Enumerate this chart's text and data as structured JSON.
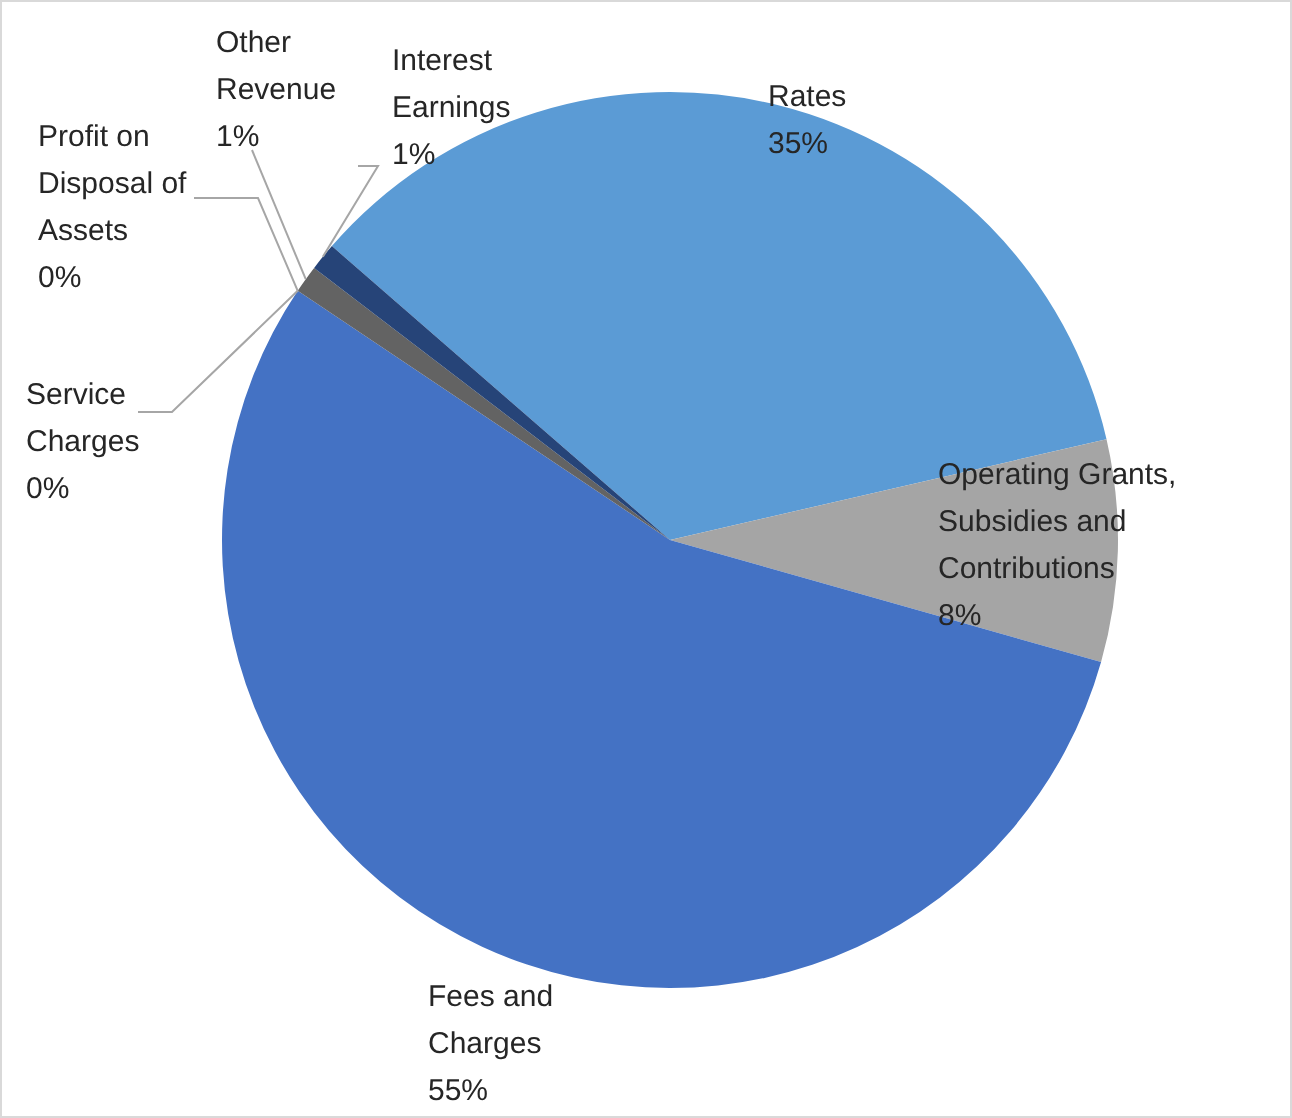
{
  "chart_data": {
    "type": "pie",
    "categories": [
      "Rates",
      "Operating Grants, Subsidies and Contributions",
      "Fees and Charges",
      "Service Charges",
      "Profit on Disposal of Assets",
      "Other Revenue",
      "Interest Earnings"
    ],
    "values": [
      35,
      8,
      55,
      0,
      0,
      1,
      1
    ],
    "value_labels": [
      "35%",
      "8%",
      "55%",
      "0%",
      "0%",
      "1%",
      "1%"
    ],
    "colors": [
      "#5b9bd5",
      "#a5a5a5",
      "#4472c4",
      "#ed7d31",
      "#ffc000",
      "#636363",
      "#264478"
    ],
    "legend": false
  }
}
